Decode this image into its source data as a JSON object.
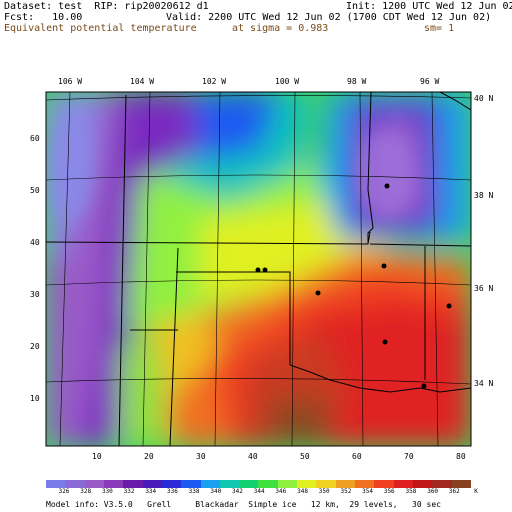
{
  "header": {
    "dataset": "Dataset: test  RIP: rip20020612 d1",
    "init": "Init: 1200 UTC Wed 12 Jun 02",
    "fcst": "Fcst:   10.00",
    "valid": "Valid: 2200 UTC Wed 12 Jun 02 (1700 CDT Wed 12 Jun 02)",
    "field": "Equivalent potential temperature",
    "level": "at sigma = 0.983",
    "smoothing": "sm= 1"
  },
  "map": {
    "lon_labels": [
      "106 W",
      "104 W",
      "102 W",
      "100 W",
      "98 W",
      "96 W"
    ],
    "lat_labels": [
      "40 N",
      "38 N",
      "36 N",
      "34 N"
    ],
    "x_ticks": [
      "10",
      "20",
      "30",
      "40",
      "50",
      "60",
      "70",
      "80"
    ],
    "y_ticks": [
      "60",
      "50",
      "40",
      "30",
      "20",
      "10"
    ]
  },
  "colorbar": {
    "labels": [
      "326",
      "328",
      "330",
      "332",
      "334",
      "336",
      "338",
      "340",
      "342",
      "344",
      "346",
      "348",
      "350",
      "352",
      "354",
      "356",
      "358",
      "360",
      "362",
      "K"
    ],
    "colors": [
      "#7a7ae8",
      "#8a6ad8",
      "#9a5ac8",
      "#8a3ab8",
      "#6a1aa8",
      "#4a1ab8",
      "#2a2ad8",
      "#1a5af0",
      "#1aa0f0",
      "#10c8b0",
      "#10d070",
      "#40e040",
      "#90f040",
      "#e0f020",
      "#f0d020",
      "#f0a020",
      "#f07020",
      "#f04020",
      "#e02020",
      "#c01818",
      "#a02820",
      "#884020"
    ]
  },
  "footer": "Model info: V3.5.0   Grell     Blackadar  Simple ice   12 km,  29 levels,   30 sec"
}
